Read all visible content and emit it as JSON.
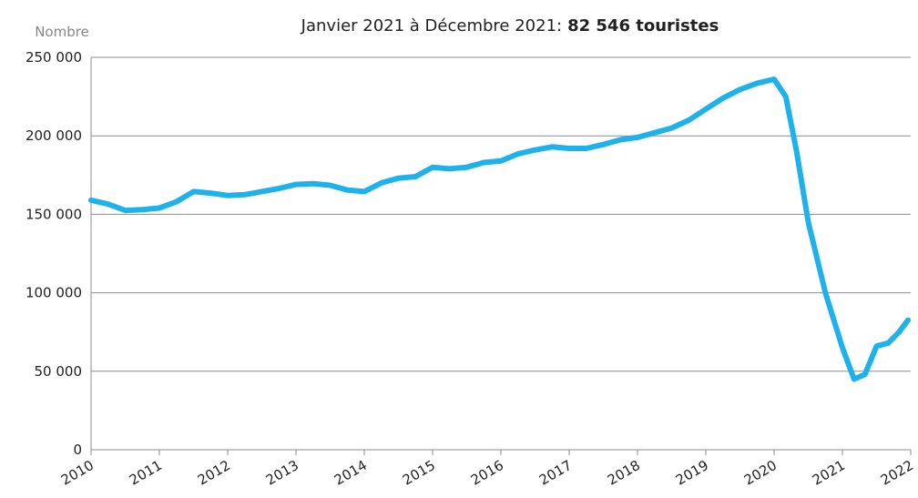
{
  "chart_data": {
    "type": "line",
    "title": "Janvier 2021 à Décembre 2021:",
    "title_emphasis": "82 546 touristes",
    "ylabel": "Nombre",
    "series": [
      {
        "color": "#1fb2ea",
        "x": [
          2010.0,
          2010.25,
          2010.5,
          2010.75,
          2011.0,
          2011.25,
          2011.5,
          2011.75,
          2012.0,
          2012.25,
          2012.5,
          2012.75,
          2013.0,
          2013.25,
          2013.5,
          2013.75,
          2014.0,
          2014.25,
          2014.5,
          2014.75,
          2015.0,
          2015.25,
          2015.5,
          2015.75,
          2016.0,
          2016.25,
          2016.5,
          2016.75,
          2017.0,
          2017.25,
          2017.5,
          2017.75,
          2018.0,
          2018.25,
          2018.5,
          2018.75,
          2019.0,
          2019.25,
          2019.5,
          2019.75,
          2020.0,
          2020.17,
          2020.33,
          2020.5,
          2020.75,
          2021.0,
          2021.17,
          2021.33,
          2021.5,
          2021.67,
          2021.83,
          2021.96
        ],
        "values": [
          159000,
          156500,
          152500,
          153000,
          154000,
          158000,
          164500,
          163500,
          162000,
          162500,
          164500,
          166500,
          169000,
          169500,
          168500,
          165500,
          164500,
          170000,
          173000,
          174000,
          180000,
          179000,
          180000,
          183000,
          184000,
          188500,
          191000,
          193000,
          192000,
          192000,
          194500,
          197500,
          199000,
          202000,
          205000,
          210000,
          217000,
          224000,
          229500,
          233500,
          236000,
          225000,
          190000,
          145000,
          100000,
          65000,
          45000,
          48000,
          66000,
          68000,
          75000,
          82546
        ]
      }
    ],
    "xlim": [
      2010,
      2022
    ],
    "xticks": [
      2010,
      2011,
      2012,
      2013,
      2014,
      2015,
      2016,
      2017,
      2018,
      2019,
      2020,
      2021,
      2022
    ],
    "ylim": [
      0,
      250000
    ],
    "yticks": [
      0,
      {
        "value": 50000,
        "label": "50 000"
      },
      {
        "value": 100000,
        "label": "100 000"
      },
      {
        "value": 150000,
        "label": "150 000"
      },
      {
        "value": 200000,
        "label": "200 000"
      },
      {
        "value": 250000,
        "label": "250 000"
      }
    ],
    "grid": true
  }
}
